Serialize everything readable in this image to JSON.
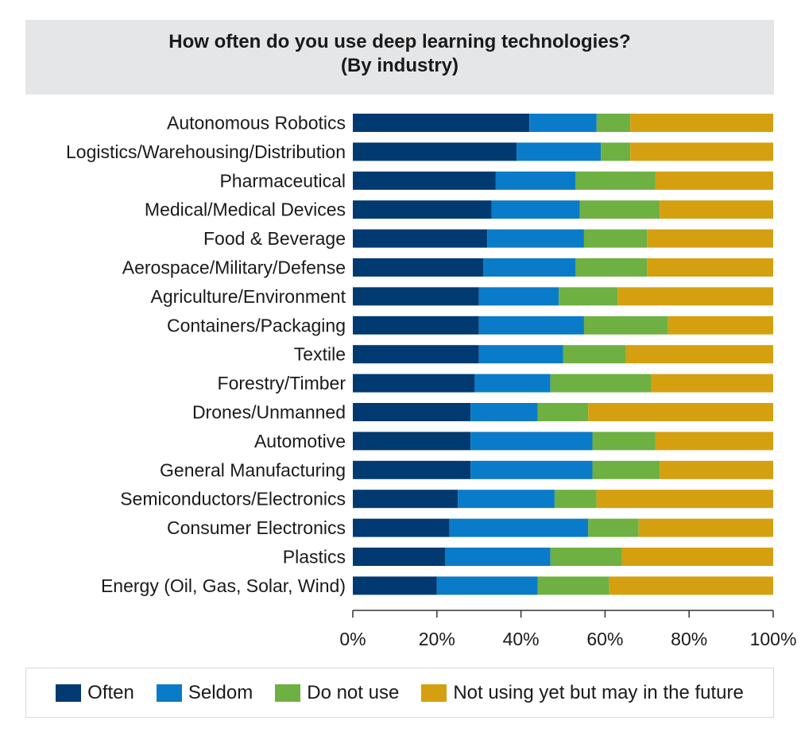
{
  "chart_data": {
    "type": "bar",
    "orientation": "horizontal",
    "stacked": true,
    "title": "How often do you use deep learning technologies?",
    "subtitle": "(By industry)",
    "categories": [
      "Autonomous Robotics",
      "Logistics/Warehousing/Distribution",
      "Pharmaceutical",
      "Medical/Medical Devices",
      "Food & Beverage",
      "Aerospace/Military/Defense",
      "Agriculture/Environment",
      "Containers/Packaging",
      "Textile",
      "Forestry/Timber",
      "Drones/Unmanned",
      "Automotive",
      "General Manufacturing",
      "Semiconductors/Electronics",
      "Consumer Electronics",
      "Plastics",
      "Energy (Oil, Gas, Solar, Wind)"
    ],
    "series": [
      {
        "name": "Often",
        "color": "#003a70",
        "values": [
          42,
          39,
          34,
          33,
          32,
          31,
          30,
          30,
          30,
          29,
          28,
          28,
          28,
          25,
          23,
          22,
          20
        ]
      },
      {
        "name": "Seldom",
        "color": "#0a7bc8",
        "values": [
          16,
          20,
          19,
          21,
          23,
          22,
          19,
          25,
          20,
          18,
          16,
          29,
          29,
          23,
          33,
          25,
          24
        ]
      },
      {
        "name": "Do not use",
        "color": "#6eb042",
        "values": [
          8,
          7,
          19,
          19,
          15,
          17,
          14,
          20,
          15,
          24,
          12,
          15,
          16,
          10,
          12,
          17,
          17
        ]
      },
      {
        "name": "Not using yet but may in the future",
        "color": "#d4a00f",
        "values": [
          34,
          34,
          28,
          27,
          30,
          30,
          37,
          25,
          35,
          29,
          44,
          28,
          27,
          42,
          32,
          36,
          39
        ]
      }
    ],
    "xlim": [
      0,
      100
    ],
    "xticks": [
      "0%",
      "20%",
      "40%",
      "60%",
      "80%",
      "100%"
    ],
    "grid": false,
    "legend_position": "bottom"
  }
}
